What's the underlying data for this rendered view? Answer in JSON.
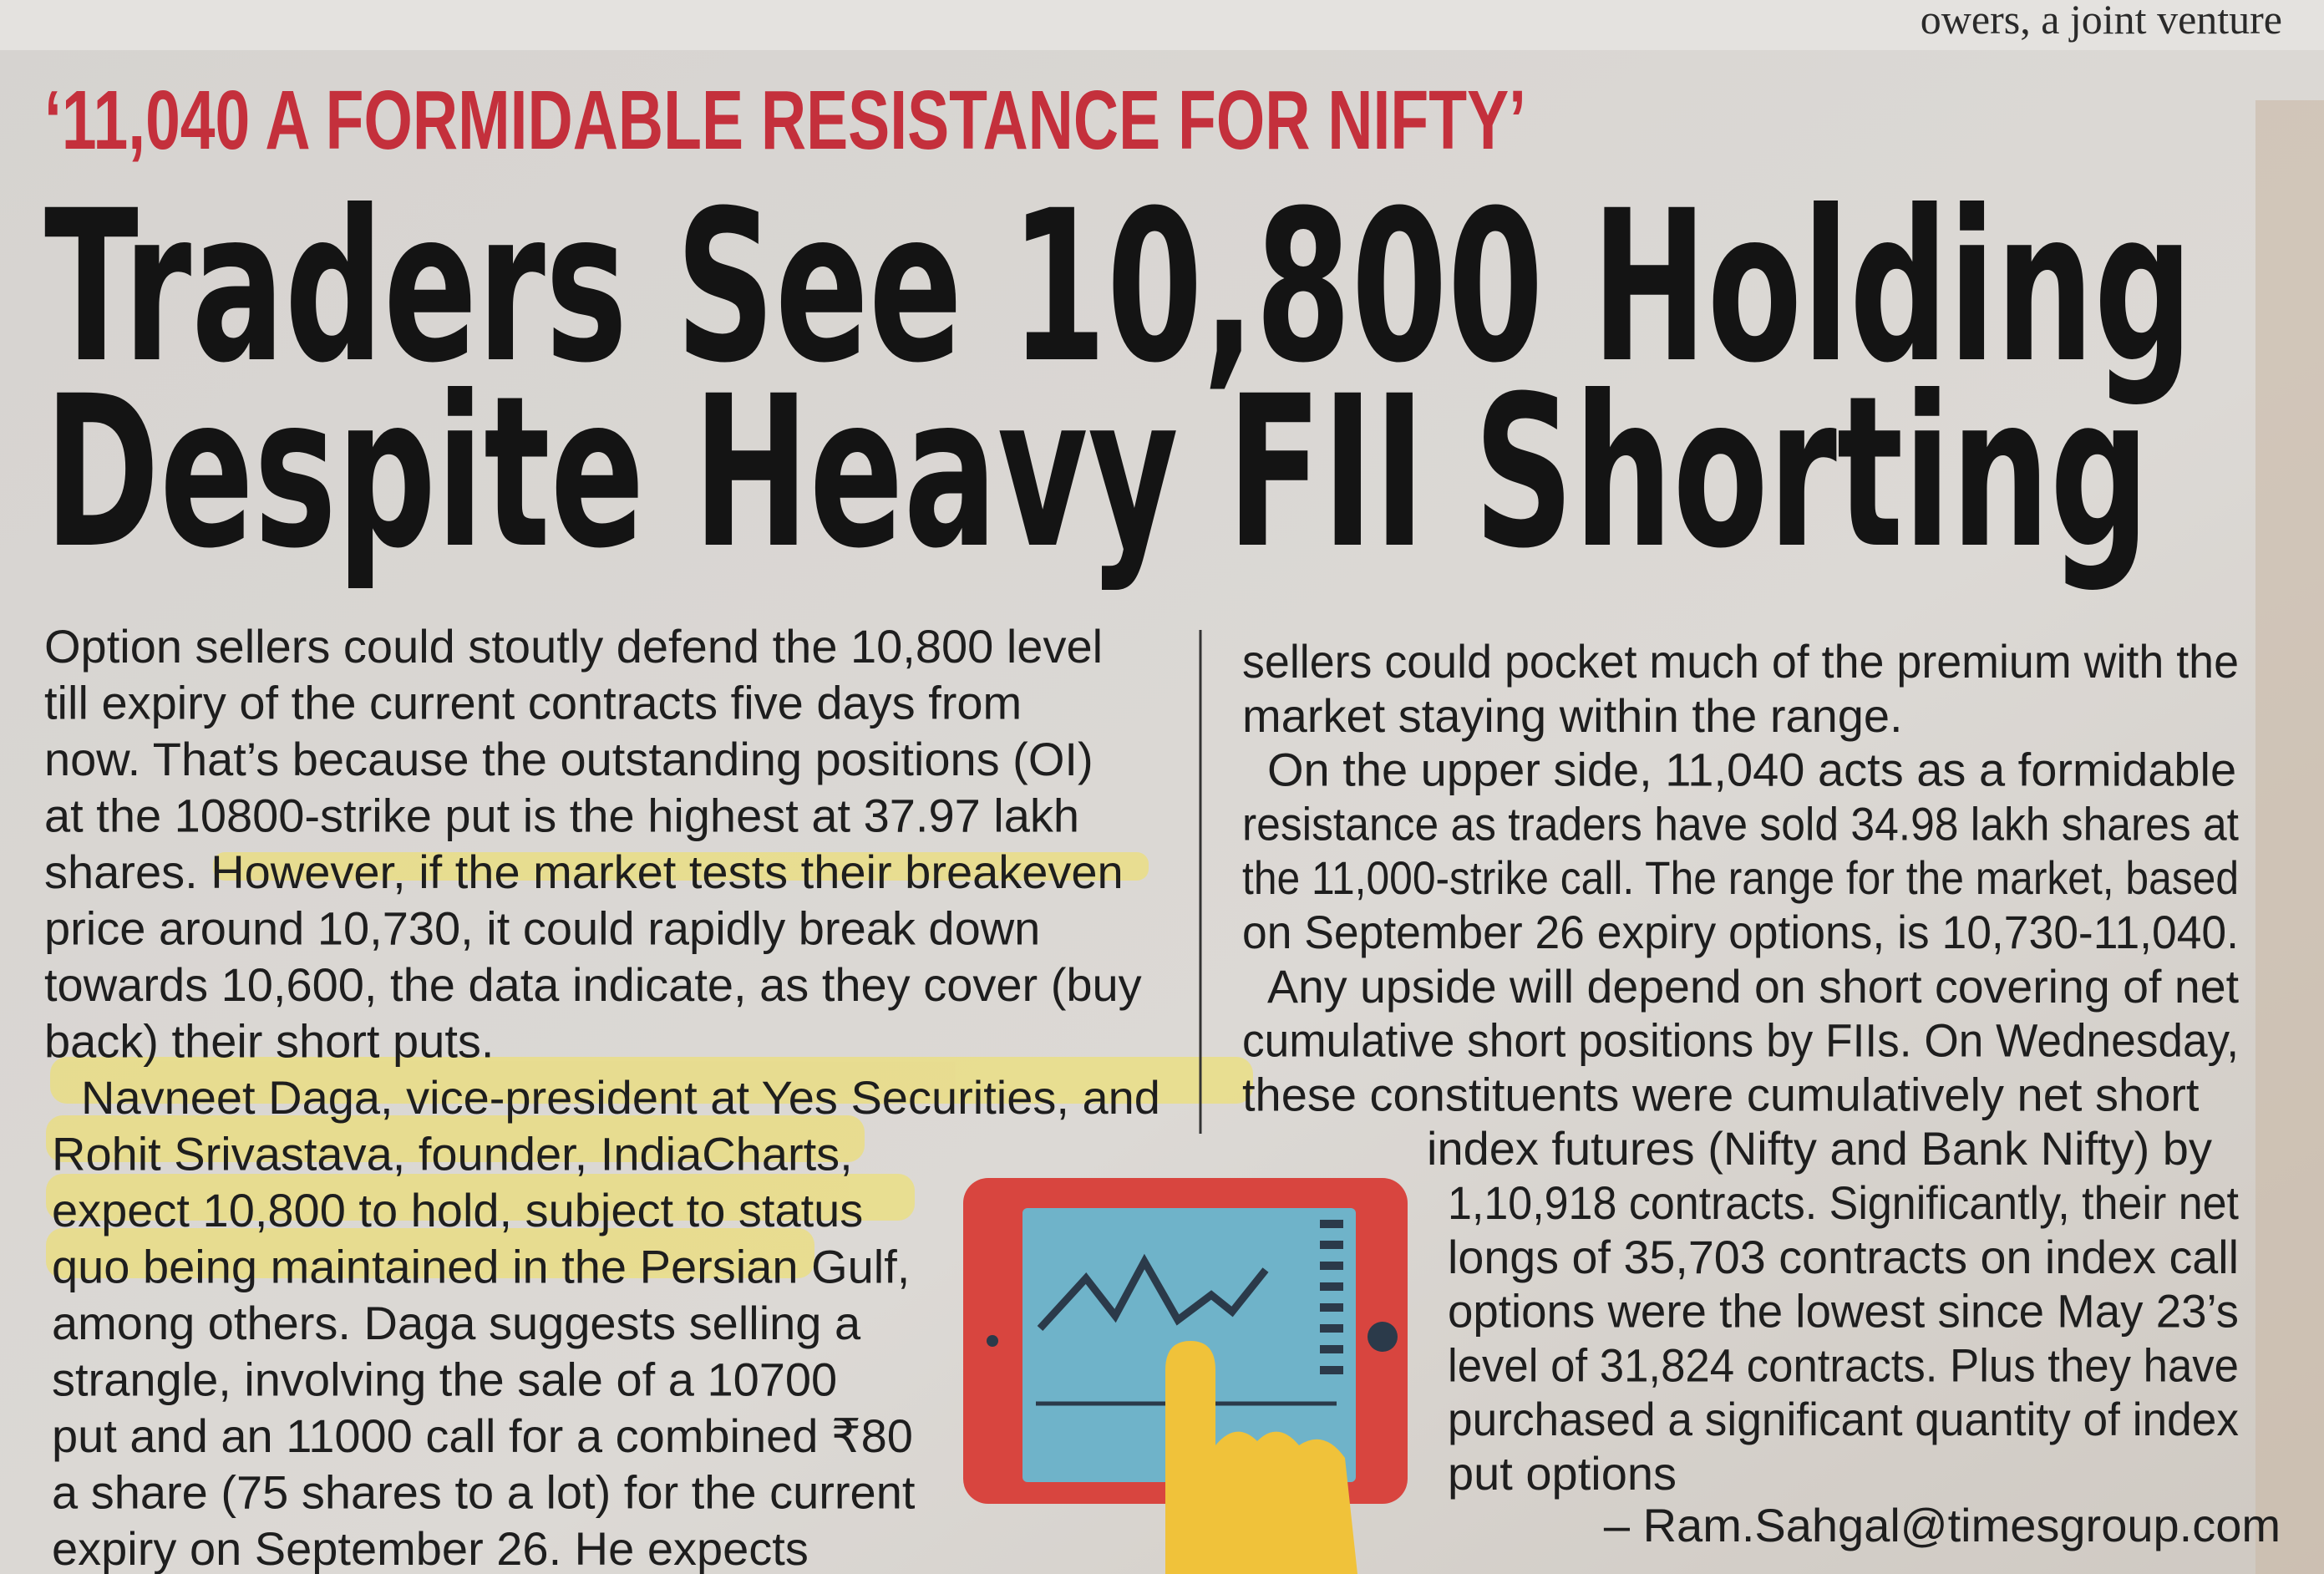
{
  "top_fragment": "owers, a joint venture",
  "kicker": "‘11,040 A FORMIDABLE RESISTANCE FOR NIFTY’",
  "headline": [
    "Traders See 10,800 Holding",
    "Despite Heavy FII Shorting"
  ],
  "left_column": [
    "Option sellers could stoutly defend the 10,800 level",
    "till expiry of the current contracts five days from",
    "now. That’s because the outstanding positions (OI)",
    "at the 10800-strike put is the highest at 37.97 lakh",
    "shares. However, if the market tests their breakeven",
    "price around 10,730, it could rapidly break down",
    "towards 10,600, the data indicate, as they cover (buy",
    "back) their short puts.",
    "Navneet Daga, vice-president at Yes Securities, and",
    "Rohit Srivastava, founder, IndiaCharts,",
    "expect 10,800 to hold, subject to status",
    "quo being maintained in the Persian Gulf,",
    "among others. Daga suggests selling a",
    "strangle, involving the sale of a 10700",
    "put and an 11000 call for a combined ₹80",
    "a share (75 shares to a lot) for the current",
    "expiry on September 26. He expects"
  ],
  "right_column": [
    "sellers could pocket much of the premium with the",
    "market staying within the range.",
    "On the upper side, 11,040 acts as a formidable",
    "resistance as traders have sold 34.98 lakh shares at",
    "the 11,000-strike call. The range for the market, based",
    "on September 26 expiry options, is 10,730-11,040.",
    "Any upside will depend on short covering of net",
    "cumulative short positions by FIIs. On Wednesday,",
    "these constituents were cumulatively net short",
    "index futures (Nifty and Bank Nifty) by",
    "1,10,918 contracts. Significantly, their net",
    "longs of 35,703 contracts on index call",
    "options were the lowest since May 23’s",
    "level of 31,824 contracts. Plus they have",
    "purchased a significant quantity of index",
    "put options"
  ],
  "byline": "– Ram.Sahgal@timesgroup.com"
}
